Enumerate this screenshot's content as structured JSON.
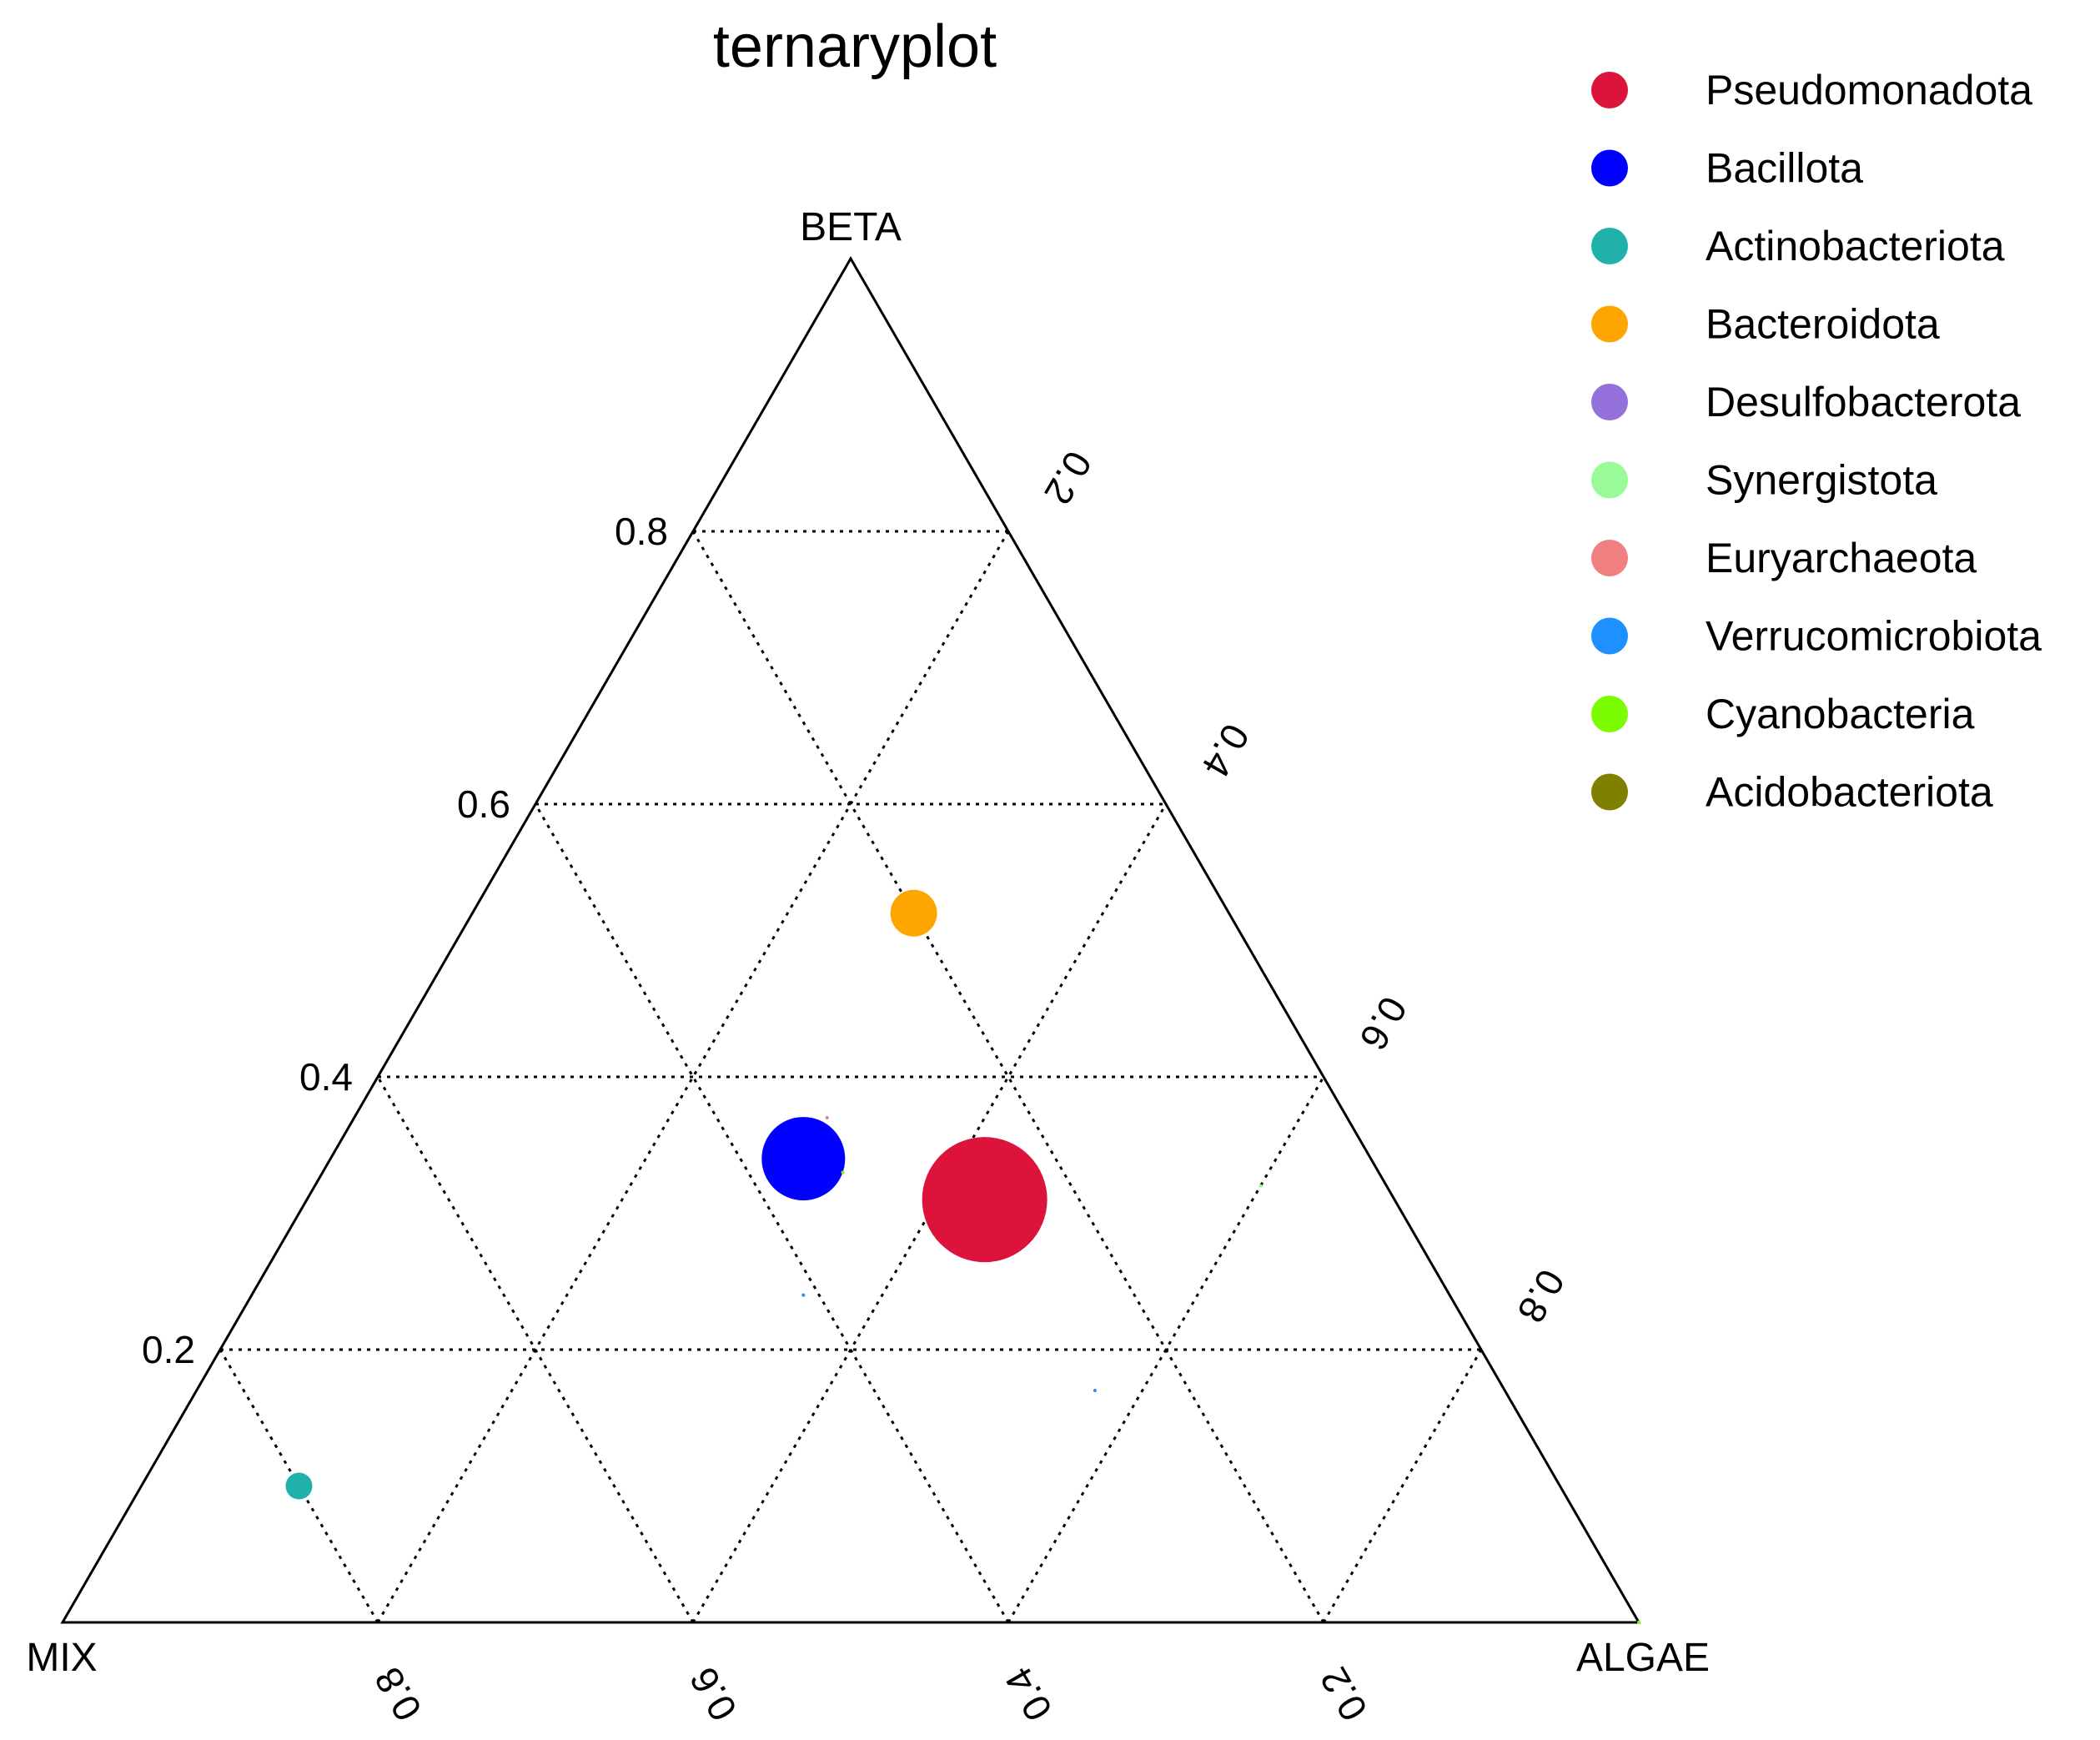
{
  "chart_data": {
    "type": "scatter",
    "subtype": "ternary",
    "title": "ternaryplot",
    "axes": {
      "top": "BETA",
      "left": "MIX",
      "right": "ALGAE"
    },
    "ticks": {
      "values": [
        0.2,
        0.4,
        0.6,
        0.8
      ],
      "labels": [
        "0.2",
        "0.4",
        "0.6",
        "0.8"
      ]
    },
    "grid": true,
    "legend_position": "top-right",
    "series": [
      {
        "name": "Pseudomonadota",
        "color": "#DC143C",
        "points": [
          {
            "BETA": 0.31,
            "ALGAE": 0.43,
            "MIX": 0.26,
            "size": 75
          }
        ]
      },
      {
        "name": "Bacillota",
        "color": "#0000FF",
        "points": [
          {
            "BETA": 0.34,
            "ALGAE": 0.3,
            "MIX": 0.36,
            "size": 50
          }
        ]
      },
      {
        "name": "Actinobacteriota",
        "color": "#20B2AA",
        "points": [
          {
            "BETA": 0.1,
            "ALGAE": 0.1,
            "MIX": 0.8,
            "size": 16
          }
        ]
      },
      {
        "name": "Bacteroidota",
        "color": "#FFA500",
        "points": [
          {
            "BETA": 0.52,
            "ALGAE": 0.28,
            "MIX": 0.2,
            "size": 28
          }
        ]
      },
      {
        "name": "Desulfobacterota",
        "color": "#9370DB",
        "points": []
      },
      {
        "name": "Synergistota",
        "color": "#98FB98",
        "points": [
          {
            "BETA": 0.32,
            "ALGAE": 0.6,
            "MIX": 0.08,
            "size": 2
          }
        ]
      },
      {
        "name": "Euryarchaeota",
        "color": "#F08080",
        "points": [
          {
            "BETA": 0.37,
            "ALGAE": 0.3,
            "MIX": 0.33,
            "size": 2
          }
        ]
      },
      {
        "name": "Verrucomicrobiota",
        "color": "#1E90FF",
        "points": [
          {
            "BETA": 0.24,
            "ALGAE": 0.35,
            "MIX": 0.41,
            "size": 2
          },
          {
            "BETA": 0.17,
            "ALGAE": 0.57,
            "MIX": 0.26,
            "size": 2
          }
        ]
      },
      {
        "name": "Cyanobacteria",
        "color": "#7CFC00",
        "points": [
          {
            "BETA": 0.33,
            "ALGAE": 0.33,
            "MIX": 0.34,
            "size": 2
          },
          {
            "BETA": 0.0,
            "ALGAE": 1.0,
            "MIX": 0.0,
            "size": 2
          }
        ]
      },
      {
        "name": "Acidobacteriota",
        "color": "#808000",
        "points": []
      }
    ]
  }
}
